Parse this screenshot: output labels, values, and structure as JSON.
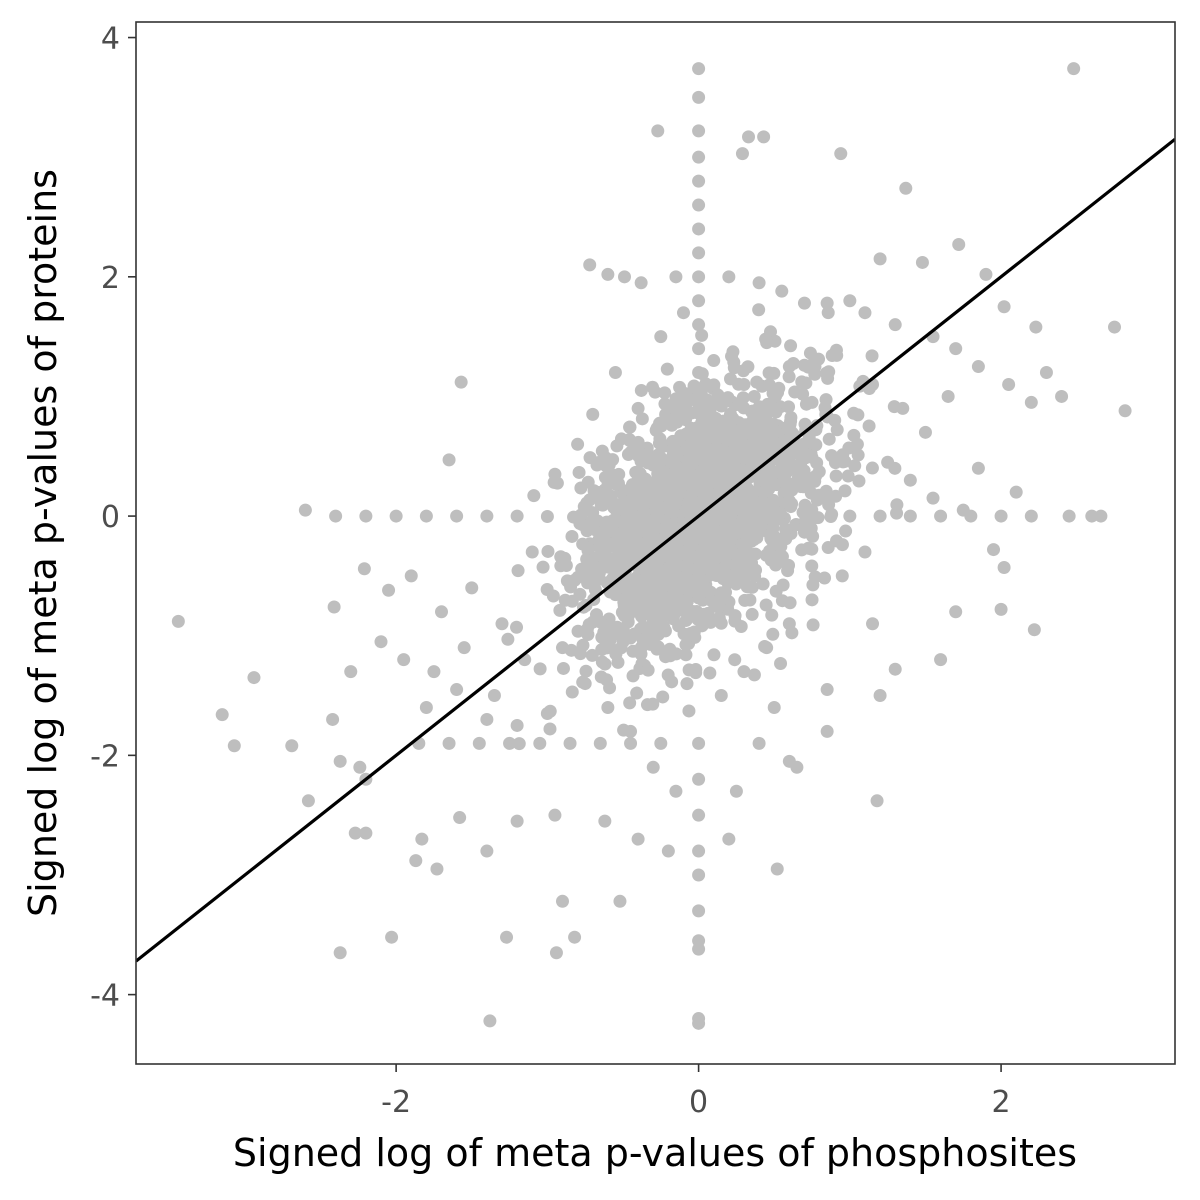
{
  "chart_data": {
    "type": "scatter",
    "title": "",
    "xlabel": "Signed log of meta p-values of phosphosites",
    "ylabel": "Signed log of meta p-values of proteins",
    "xlim": [
      -3.72,
      3.15
    ],
    "ylim": [
      -4.58,
      4.13
    ],
    "x_ticks": [
      -2,
      0,
      2
    ],
    "x_tick_labels": [
      "-2",
      "0",
      "2"
    ],
    "y_ticks": [
      -4,
      -2,
      0,
      2,
      4
    ],
    "y_tick_labels": [
      "-4",
      "-2",
      "0",
      "2",
      "4"
    ],
    "grid": false,
    "legend": "none",
    "point_color": "#bebebe",
    "line_color": "#000000",
    "fit_line": {
      "slope": 1.0,
      "intercept": 0.0
    },
    "points": [
      [
        0.0,
        3.74
      ],
      [
        0.0,
        3.5
      ],
      [
        0.0,
        3.22
      ],
      [
        0.0,
        3.0
      ],
      [
        0.0,
        2.8
      ],
      [
        0.0,
        2.6
      ],
      [
        0.0,
        2.4
      ],
      [
        0.0,
        2.2
      ],
      [
        0.0,
        2.0
      ],
      [
        0.0,
        1.8
      ],
      [
        0.0,
        1.6
      ],
      [
        0.0,
        1.4
      ],
      [
        0.0,
        1.2
      ],
      [
        0.0,
        1.0
      ],
      [
        0.0,
        -1.9
      ],
      [
        0.0,
        -2.2
      ],
      [
        0.0,
        -2.5
      ],
      [
        0.0,
        -2.8
      ],
      [
        0.0,
        -3.0
      ],
      [
        0.0,
        -3.3
      ],
      [
        0.0,
        -3.55
      ],
      [
        0.0,
        -3.62
      ],
      [
        0.0,
        -4.2
      ],
      [
        0.0,
        -4.24
      ],
      [
        -2.6,
        0.05
      ],
      [
        -2.4,
        0.0
      ],
      [
        -2.2,
        0.0
      ],
      [
        -2.0,
        0.0
      ],
      [
        -1.8,
        0.0
      ],
      [
        -1.6,
        0.0
      ],
      [
        -1.4,
        0.0
      ],
      [
        -1.2,
        0.0
      ],
      [
        1.0,
        0.0
      ],
      [
        1.2,
        0.0
      ],
      [
        1.4,
        0.0
      ],
      [
        1.6,
        0.0
      ],
      [
        1.8,
        0.0
      ],
      [
        2.0,
        0.0
      ],
      [
        2.2,
        0.0
      ],
      [
        2.45,
        0.0
      ],
      [
        2.6,
        0.0
      ],
      [
        2.66,
        0.0
      ],
      [
        2.48,
        3.74
      ],
      [
        -0.27,
        3.22
      ],
      [
        0.33,
        3.17
      ],
      [
        0.43,
        3.17
      ],
      [
        0.29,
        3.03
      ],
      [
        0.94,
        3.03
      ],
      [
        1.37,
        2.74
      ],
      [
        2.82,
        0.88
      ],
      [
        2.75,
        1.58
      ],
      [
        2.23,
        1.58
      ],
      [
        2.02,
        1.75
      ],
      [
        1.9,
        2.02
      ],
      [
        1.72,
        2.27
      ],
      [
        1.48,
        2.12
      ],
      [
        1.2,
        2.15
      ],
      [
        1.0,
        1.8
      ],
      [
        -0.72,
        2.1
      ],
      [
        -0.6,
        2.02
      ],
      [
        -0.49,
        2.0
      ],
      [
        -0.38,
        1.95
      ],
      [
        -0.15,
        2.0
      ],
      [
        0.2,
        2.0
      ],
      [
        0.4,
        1.95
      ],
      [
        0.55,
        1.88
      ],
      [
        0.7,
        1.78
      ],
      [
        0.85,
        1.78
      ],
      [
        1.1,
        1.7
      ],
      [
        1.3,
        1.6
      ],
      [
        1.55,
        1.5
      ],
      [
        1.7,
        1.4
      ],
      [
        1.85,
        1.25
      ],
      [
        2.05,
        1.1
      ],
      [
        2.2,
        0.95
      ],
      [
        2.3,
        1.2
      ],
      [
        2.4,
        1.0
      ],
      [
        2.1,
        0.2
      ],
      [
        1.95,
        -0.28
      ],
      [
        2.02,
        -0.43
      ],
      [
        2.0,
        -0.78
      ],
      [
        1.7,
        -0.8
      ],
      [
        1.6,
        -1.2
      ],
      [
        2.22,
        -0.95
      ],
      [
        1.15,
        -0.9
      ],
      [
        0.85,
        -1.45
      ],
      [
        1.2,
        -1.5
      ],
      [
        1.3,
        -1.28
      ],
      [
        1.18,
        -2.38
      ],
      [
        0.52,
        -2.95
      ],
      [
        0.65,
        -2.1
      ],
      [
        0.6,
        -2.05
      ],
      [
        -1.57,
        1.12
      ],
      [
        -1.65,
        0.47
      ],
      [
        -2.05,
        -0.62
      ],
      [
        -2.21,
        -0.44
      ],
      [
        -2.41,
        -0.76
      ],
      [
        -2.42,
        -1.7
      ],
      [
        -3.44,
        -0.88
      ],
      [
        -2.94,
        -1.35
      ],
      [
        -3.15,
        -1.66
      ],
      [
        -3.07,
        -1.92
      ],
      [
        -2.69,
        -1.92
      ],
      [
        -2.58,
        -2.38
      ],
      [
        -2.37,
        -2.05
      ],
      [
        -2.24,
        -2.1
      ],
      [
        -2.2,
        -2.2
      ],
      [
        -2.27,
        -2.65
      ],
      [
        -2.2,
        -2.65
      ],
      [
        -2.37,
        -3.65
      ],
      [
        -2.03,
        -3.52
      ],
      [
        -1.87,
        -2.88
      ],
      [
        -1.83,
        -2.7
      ],
      [
        -1.73,
        -2.95
      ],
      [
        -1.4,
        -2.8
      ],
      [
        -1.38,
        -4.22
      ],
      [
        -1.27,
        -3.52
      ],
      [
        -0.94,
        -3.65
      ],
      [
        -0.82,
        -3.52
      ],
      [
        -0.9,
        -3.22
      ],
      [
        -0.52,
        -3.22
      ],
      [
        -1.58,
        -2.52
      ],
      [
        -1.2,
        -2.55
      ],
      [
        -0.95,
        -2.5
      ],
      [
        -0.62,
        -2.55
      ],
      [
        -0.4,
        -2.7
      ],
      [
        -0.2,
        -2.8
      ],
      [
        0.2,
        -2.7
      ],
      [
        0.85,
        -1.8
      ],
      [
        -1.85,
        -1.9
      ],
      [
        -1.65,
        -1.9
      ],
      [
        -1.45,
        -1.9
      ],
      [
        -1.25,
        -1.9
      ],
      [
        -1.05,
        -1.9
      ],
      [
        -0.85,
        -1.9
      ],
      [
        -0.65,
        -1.9
      ],
      [
        -0.45,
        -1.9
      ],
      [
        -0.25,
        -1.9
      ],
      [
        -1.9,
        -0.5
      ],
      [
        -1.7,
        -0.8
      ],
      [
        -1.5,
        -0.6
      ],
      [
        -1.3,
        -0.9
      ],
      [
        -1.1,
        -0.3
      ],
      [
        -1.75,
        -1.3
      ],
      [
        -1.55,
        -1.1
      ],
      [
        -1.35,
        -1.5
      ],
      [
        -1.15,
        -1.2
      ],
      [
        -0.95,
        0.35
      ],
      [
        -0.8,
        0.6
      ],
      [
        -0.7,
        0.85
      ],
      [
        -0.55,
        1.2
      ],
      [
        -0.4,
        0.9
      ],
      [
        -0.25,
        1.5
      ],
      [
        -0.1,
        1.7
      ],
      [
        0.1,
        1.3
      ],
      [
        0.3,
        1.1
      ],
      [
        0.45,
        1.45
      ],
      [
        0.6,
        1.25
      ],
      [
        0.75,
        0.95
      ],
      [
        0.9,
        0.8
      ],
      [
        1.05,
        0.6
      ],
      [
        1.25,
        0.45
      ],
      [
        1.4,
        0.3
      ],
      [
        1.55,
        0.15
      ],
      [
        1.75,
        0.05
      ],
      [
        1.85,
        0.4
      ],
      [
        1.5,
        0.7
      ],
      [
        1.65,
        1.0
      ],
      [
        1.35,
        0.9
      ],
      [
        1.15,
        1.1
      ],
      [
        -0.9,
        -1.1
      ],
      [
        -0.75,
        -1.4
      ],
      [
        -0.6,
        -1.6
      ],
      [
        -0.45,
        -1.8
      ],
      [
        -0.3,
        -2.1
      ],
      [
        -0.15,
        -2.3
      ],
      [
        0.15,
        -1.5
      ],
      [
        0.3,
        -1.3
      ],
      [
        0.45,
        -1.1
      ],
      [
        0.6,
        -0.9
      ],
      [
        0.75,
        -0.7
      ],
      [
        0.95,
        -0.5
      ],
      [
        1.1,
        -0.3
      ],
      [
        0.25,
        -2.3
      ],
      [
        0.4,
        -1.9
      ],
      [
        0.5,
        -1.6
      ],
      [
        -2.1,
        -1.05
      ],
      [
        -1.95,
        -1.2
      ],
      [
        -2.3,
        -1.3
      ],
      [
        -1.8,
        -1.6
      ],
      [
        -1.6,
        -1.45
      ],
      [
        -1.4,
        -1.7
      ],
      [
        -1.2,
        -1.75
      ],
      [
        -1.0,
        -1.65
      ]
    ],
    "cluster": {
      "count": 1800,
      "sd_x": 0.42,
      "sd_y": 0.55,
      "correlation": 0.45,
      "seed": 7
    }
  }
}
